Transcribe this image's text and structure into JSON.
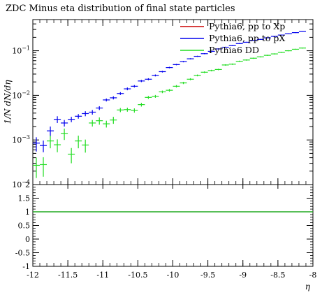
{
  "chart_data": {
    "type": "scatter",
    "title": "ZDC Minus eta distribution of final state particles",
    "ylabel": "1/N dN/dη",
    "xlabel": "η",
    "xlim": [
      -12,
      -8
    ],
    "ylim": [
      0.0001,
      0.5
    ],
    "yscale": "log",
    "y_ticks": [
      {
        "v": 0.0001,
        "base": "10",
        "exp": "−4"
      },
      {
        "v": 0.001,
        "base": "10",
        "exp": "−3"
      },
      {
        "v": 0.01,
        "base": "10",
        "exp": "−2"
      },
      {
        "v": 0.1,
        "base": "10",
        "exp": "−1"
      }
    ],
    "x_ticks": [
      {
        "v": -12,
        "label": "-12"
      },
      {
        "v": -11.5,
        "label": "-11.5"
      },
      {
        "v": -11,
        "label": "-11"
      },
      {
        "v": -10.5,
        "label": "-10.5"
      },
      {
        "v": -10,
        "label": "-10"
      },
      {
        "v": -9.5,
        "label": "-9.5"
      },
      {
        "v": -9,
        "label": "-9"
      },
      {
        "v": -8.5,
        "label": "-8.5"
      },
      {
        "v": -8,
        "label": "-8"
      }
    ],
    "legend_position": "top-right",
    "series": [
      {
        "name": "Pythia6, pp to Xp",
        "color": "#cc0000",
        "points": []
      },
      {
        "name": "Pythia6, pp to pX",
        "color": "#0000ee",
        "points": [
          {
            "x": -11.95,
            "y": 0.00085,
            "err": 0.0003
          },
          {
            "x": -11.85,
            "y": 0.00075,
            "err": 0.00022
          },
          {
            "x": -11.75,
            "y": 0.0016,
            "err": 0.0004
          },
          {
            "x": -11.65,
            "y": 0.0029,
            "err": 0.0005
          },
          {
            "x": -11.55,
            "y": 0.0024,
            "err": 0.0004
          },
          {
            "x": -11.45,
            "y": 0.0029,
            "err": 0.0004
          },
          {
            "x": -11.35,
            "y": 0.0034,
            "err": 0.0004
          },
          {
            "x": -11.25,
            "y": 0.0039,
            "err": 0.0005
          },
          {
            "x": -11.15,
            "y": 0.0042,
            "err": 0.0005
          },
          {
            "x": -11.05,
            "y": 0.0052,
            "err": 0.0005
          },
          {
            "x": -10.95,
            "y": 0.0079,
            "err": 0.0006
          },
          {
            "x": -10.85,
            "y": 0.0088,
            "err": 0.0007
          },
          {
            "x": -10.75,
            "y": 0.011,
            "err": 0.0008
          },
          {
            "x": -10.65,
            "y": 0.014,
            "err": 0.001
          },
          {
            "x": -10.55,
            "y": 0.016,
            "err": 0.001
          },
          {
            "x": -10.45,
            "y": 0.021,
            "err": 0.0012
          },
          {
            "x": -10.35,
            "y": 0.023,
            "err": 0.0012
          },
          {
            "x": -10.25,
            "y": 0.028,
            "err": 0.0014
          },
          {
            "x": -10.15,
            "y": 0.034,
            "err": 0.0015
          },
          {
            "x": -10.05,
            "y": 0.042,
            "err": 0.0017
          },
          {
            "x": -9.95,
            "y": 0.049,
            "err": 0.0018
          },
          {
            "x": -9.85,
            "y": 0.057,
            "err": 0.002
          },
          {
            "x": -9.75,
            "y": 0.066,
            "err": 0.0021
          },
          {
            "x": -9.65,
            "y": 0.075,
            "err": 0.0023
          },
          {
            "x": -9.55,
            "y": 0.086,
            "err": 0.0025
          },
          {
            "x": -9.45,
            "y": 0.097,
            "err": 0.0027
          },
          {
            "x": -9.35,
            "y": 0.11,
            "err": 0.003
          },
          {
            "x": -9.25,
            "y": 0.12,
            "err": 0.003
          },
          {
            "x": -9.15,
            "y": 0.13,
            "err": 0.003
          },
          {
            "x": -9.05,
            "y": 0.145,
            "err": 0.0035
          },
          {
            "x": -8.95,
            "y": 0.155,
            "err": 0.0035
          },
          {
            "x": -8.85,
            "y": 0.17,
            "err": 0.0038
          },
          {
            "x": -8.75,
            "y": 0.18,
            "err": 0.004
          },
          {
            "x": -8.65,
            "y": 0.195,
            "err": 0.004
          },
          {
            "x": -8.55,
            "y": 0.21,
            "err": 0.0042
          },
          {
            "x": -8.45,
            "y": 0.225,
            "err": 0.0045
          },
          {
            "x": -8.35,
            "y": 0.24,
            "err": 0.0045
          },
          {
            "x": -8.25,
            "y": 0.255,
            "err": 0.0048
          },
          {
            "x": -8.15,
            "y": 0.27,
            "err": 0.005
          }
        ]
      },
      {
        "name": "Pythia6 DD",
        "color": "#22dd22",
        "points": [
          {
            "x": -11.95,
            "y": 0.00027,
            "err": 0.00013
          },
          {
            "x": -11.85,
            "y": 0.00028,
            "err": 0.00013
          },
          {
            "x": -11.75,
            "y": 0.00095,
            "err": 0.0003
          },
          {
            "x": -11.65,
            "y": 0.00078,
            "err": 0.00025
          },
          {
            "x": -11.55,
            "y": 0.0014,
            "err": 0.0004
          },
          {
            "x": -11.45,
            "y": 0.00048,
            "err": 0.00018
          },
          {
            "x": -11.35,
            "y": 0.00095,
            "err": 0.0003
          },
          {
            "x": -11.25,
            "y": 0.00077,
            "err": 0.00025
          },
          {
            "x": -11.15,
            "y": 0.0024,
            "err": 0.0004
          },
          {
            "x": -11.05,
            "y": 0.0027,
            "err": 0.0005
          },
          {
            "x": -10.95,
            "y": 0.0023,
            "err": 0.0004
          },
          {
            "x": -10.85,
            "y": 0.0028,
            "err": 0.0005
          },
          {
            "x": -10.75,
            "y": 0.0047,
            "err": 0.0005
          },
          {
            "x": -10.65,
            "y": 0.0048,
            "err": 0.0005
          },
          {
            "x": -10.55,
            "y": 0.0046,
            "err": 0.0005
          },
          {
            "x": -10.45,
            "y": 0.0062,
            "err": 0.0006
          },
          {
            "x": -10.35,
            "y": 0.009,
            "err": 0.0007
          },
          {
            "x": -10.25,
            "y": 0.0095,
            "err": 0.0007
          },
          {
            "x": -10.15,
            "y": 0.012,
            "err": 0.0008
          },
          {
            "x": -10.05,
            "y": 0.013,
            "err": 0.0009
          },
          {
            "x": -9.95,
            "y": 0.016,
            "err": 0.001
          },
          {
            "x": -9.85,
            "y": 0.019,
            "err": 0.0011
          },
          {
            "x": -9.75,
            "y": 0.023,
            "err": 0.0012
          },
          {
            "x": -9.65,
            "y": 0.028,
            "err": 0.0013
          },
          {
            "x": -9.55,
            "y": 0.033,
            "err": 0.0014
          },
          {
            "x": -9.45,
            "y": 0.036,
            "err": 0.0015
          },
          {
            "x": -9.35,
            "y": 0.038,
            "err": 0.0015
          },
          {
            "x": -9.25,
            "y": 0.048,
            "err": 0.0017
          },
          {
            "x": -9.15,
            "y": 0.05,
            "err": 0.0018
          },
          {
            "x": -9.05,
            "y": 0.058,
            "err": 0.002
          },
          {
            "x": -8.95,
            "y": 0.062,
            "err": 0.002
          },
          {
            "x": -8.85,
            "y": 0.068,
            "err": 0.0021
          },
          {
            "x": -8.75,
            "y": 0.073,
            "err": 0.0022
          },
          {
            "x": -8.65,
            "y": 0.079,
            "err": 0.0023
          },
          {
            "x": -8.55,
            "y": 0.085,
            "err": 0.0024
          },
          {
            "x": -8.45,
            "y": 0.092,
            "err": 0.0025
          },
          {
            "x": -8.35,
            "y": 0.1,
            "err": 0.0027
          },
          {
            "x": -8.25,
            "y": 0.108,
            "err": 0.0028
          },
          {
            "x": -8.15,
            "y": 0.115,
            "err": 0.003
          }
        ]
      }
    ],
    "ratio_panel": {
      "ylim": [
        -1,
        2
      ],
      "y_ticks": [
        {
          "v": -1,
          "label": "-1"
        },
        {
          "v": -0.5,
          "label": "-0.5"
        },
        {
          "v": 0,
          "label": "0"
        },
        {
          "v": 0.5,
          "label": "0.5"
        },
        {
          "v": 1,
          "label": "1"
        },
        {
          "v": 1.5,
          "label": "1.5"
        },
        {
          "v": 2,
          "label": "2"
        }
      ],
      "reference_value": 1,
      "reference_color": "#22aa22"
    }
  }
}
